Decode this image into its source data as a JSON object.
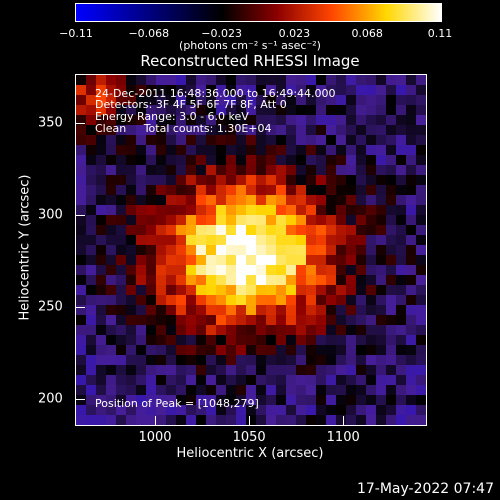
{
  "colorbar": {
    "tick_labels": [
      "−0.11",
      "−0.068",
      "−0.023",
      "0.023",
      "0.068",
      "0.11"
    ],
    "units": "(photons cm⁻² s⁻¹ asec⁻²)",
    "colors": [
      "#0000ff",
      "#000000",
      "#8b0000",
      "#ff4500",
      "#ffd700",
      "#ffffff"
    ]
  },
  "chart_data": {
    "type": "heatmap",
    "title": "Reconstructed RHESSI Image",
    "xlabel": "Heliocentric X (arcsec)",
    "ylabel": "Heliocentric Y (arcsec)",
    "xlim": [
      958,
      1144
    ],
    "ylim": [
      186,
      376
    ],
    "x_tick_labels": [
      "1000",
      "1050",
      "1100"
    ],
    "x_ticks": [
      1000,
      1050,
      1100
    ],
    "y_tick_labels": [
      "200",
      "250",
      "300",
      "350"
    ],
    "y_ticks": [
      200,
      250,
      300,
      350
    ],
    "colorbar_range": [
      -0.11,
      0.11
    ],
    "peak": [
      1048,
      279
    ],
    "annotations": {
      "time": "24-Dec-2011 16:48:36.000 to 16:49:44.000",
      "detectors": "Detectors: 3F 4F 5F 6F 7F 8F, Att 0",
      "energy": "Energy Range: 3.0 - 6.0 keV",
      "clean": "Clean     Total counts: 1.30E+04",
      "peak_text": "Position of Peak = [1048,279]"
    }
  },
  "footer": {
    "date": "17-May-2022 07:47"
  }
}
